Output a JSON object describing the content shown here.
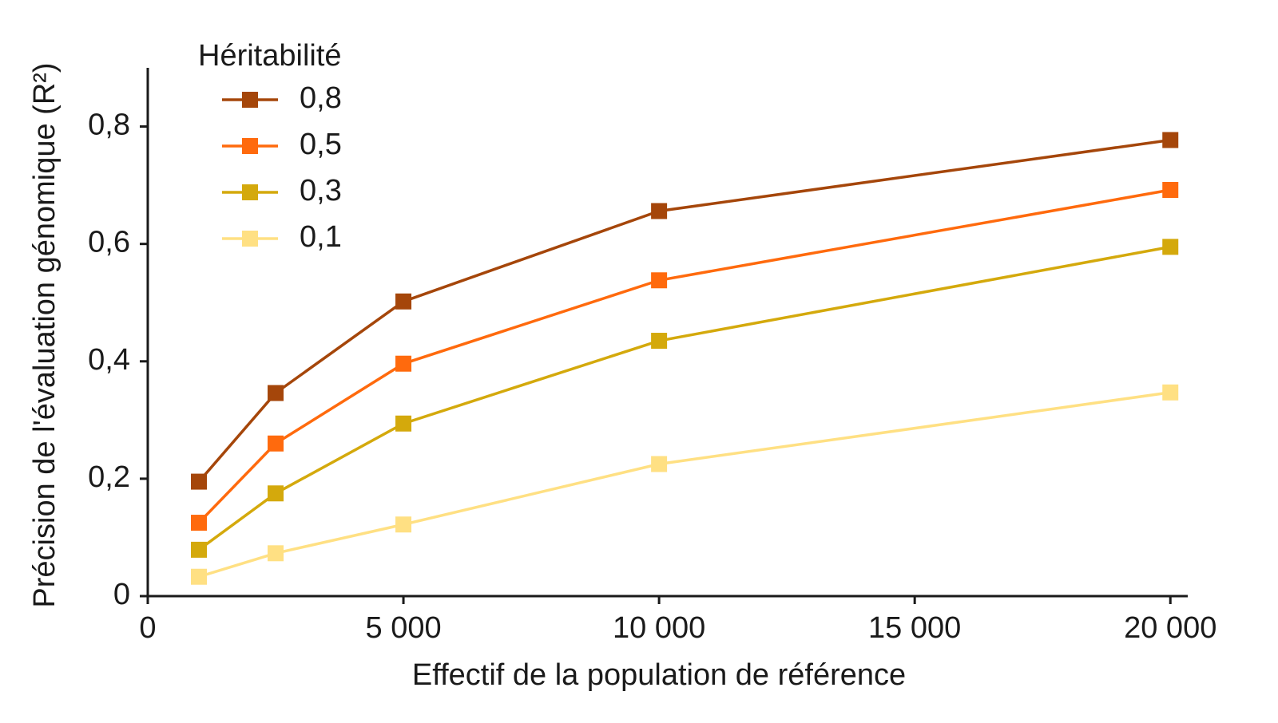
{
  "chart_data": {
    "type": "line",
    "x_label": "Effectif de la population de référence",
    "y_label": "Précision de l'évaluation génomique (R²)",
    "legend_title": "Héritabilité",
    "legend_position": "upper left",
    "x": [
      1000,
      2500,
      5000,
      10000,
      20000
    ],
    "series": [
      {
        "name": "0,8",
        "color": "#a5460a",
        "values": [
          0.195,
          0.346,
          0.502,
          0.656,
          0.777
        ]
      },
      {
        "name": "0,5",
        "color": "#ff6a0d",
        "values": [
          0.125,
          0.26,
          0.396,
          0.538,
          0.692
        ]
      },
      {
        "name": "0,3",
        "color": "#d4a90c",
        "values": [
          0.079,
          0.175,
          0.294,
          0.435,
          0.595
        ]
      },
      {
        "name": "0,1",
        "color": "#ffe083",
        "values": [
          0.033,
          0.073,
          0.122,
          0.225,
          0.347
        ]
      }
    ],
    "xlim": [
      0,
      20340
    ],
    "ylim": [
      0,
      0.9
    ],
    "xticks": [
      0,
      {
        "value": 5000,
        "label": "5 000"
      },
      {
        "value": 10000,
        "label": "10 000"
      },
      {
        "value": 15000,
        "label": "15 000"
      },
      {
        "value": 20000,
        "label": "20 000"
      }
    ],
    "yticks": [
      0,
      {
        "value": 0.2,
        "label": "0,2"
      },
      {
        "value": 0.4,
        "label": "0,4"
      },
      {
        "value": 0.6,
        "label": "0,6"
      },
      {
        "value": 0.8,
        "label": "0,8"
      }
    ]
  }
}
